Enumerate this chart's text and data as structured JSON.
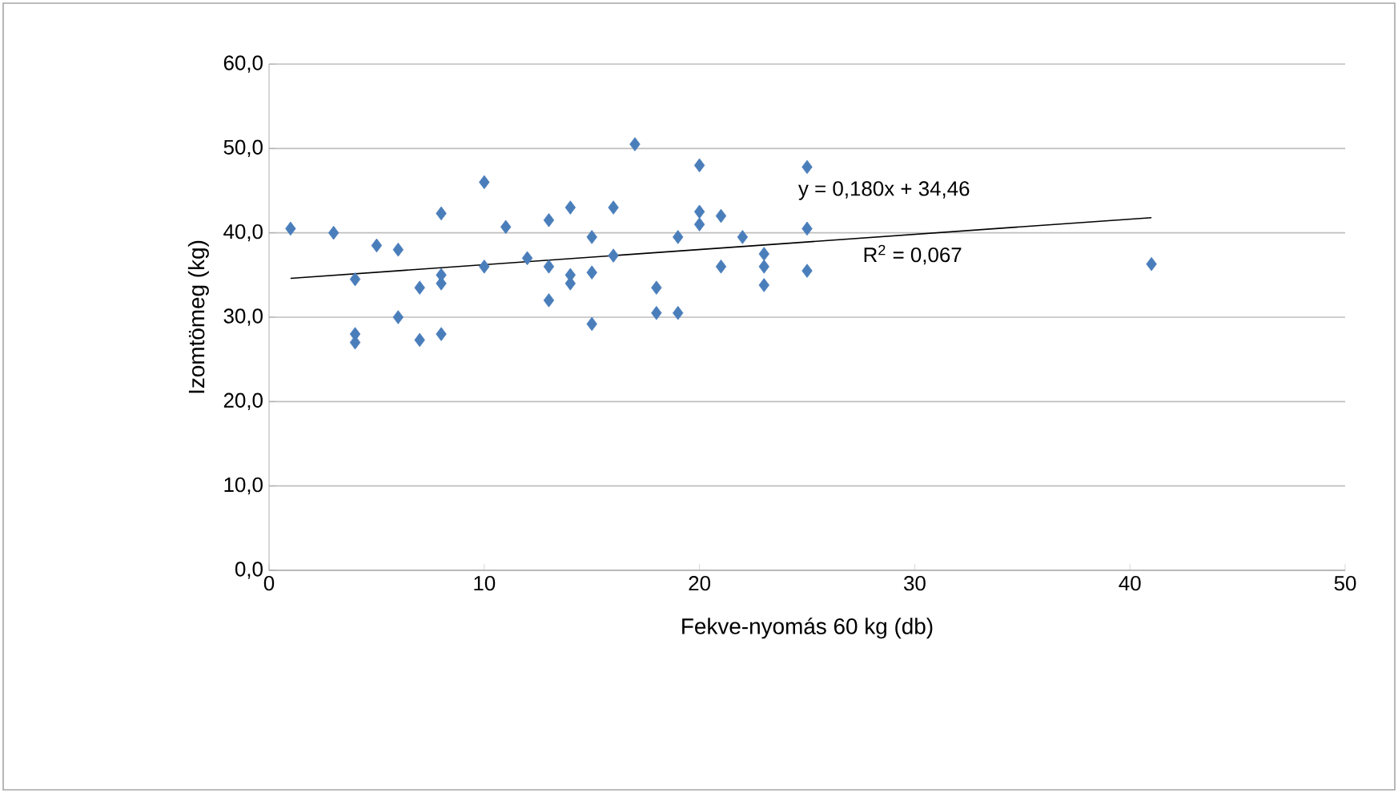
{
  "chart_data": {
    "type": "scatter",
    "xlabel": "Fekve-nyomás 60 kg (db)",
    "ylabel": "Izomtömeg (kg)",
    "xlim": [
      0,
      50
    ],
    "xticks": [
      0,
      10,
      20,
      30,
      40,
      50
    ],
    "ylim": [
      0,
      60
    ],
    "yticks": [
      {
        "value": 0,
        "label": "0,0"
      },
      {
        "value": 10,
        "label": "10,0"
      },
      {
        "value": 20,
        "label": "20,0"
      },
      {
        "value": 30,
        "label": "30,0"
      },
      {
        "value": 40,
        "label": "40,0"
      },
      {
        "value": 50,
        "label": "50,0"
      },
      {
        "value": 60,
        "label": "60,0"
      }
    ],
    "grid": "y",
    "marker": "diamond",
    "annotations": [
      "y = 0,180x + 34,46",
      "R$^{2}$ = 0,067"
    ],
    "series": [
      {
        "color": "#4a7ebb",
        "x": [
          1,
          3,
          4,
          4,
          4,
          5,
          6,
          6,
          7,
          7,
          8,
          8,
          8,
          8,
          10,
          10,
          11,
          12,
          13,
          13,
          13,
          14,
          14,
          14,
          15,
          15,
          15,
          16,
          16,
          17,
          18,
          18,
          19,
          19,
          20,
          20,
          20,
          21,
          21,
          22,
          23,
          23,
          23,
          25,
          25,
          25,
          41
        ],
        "values": [
          40.5,
          40,
          34.5,
          28,
          27,
          38.5,
          38,
          30,
          33.5,
          27.3,
          42.3,
          35,
          34,
          28,
          46,
          36,
          40.7,
          37,
          41.5,
          36,
          32,
          43,
          35,
          34,
          39.5,
          35.3,
          29.2,
          43,
          37.3,
          50.5,
          33.5,
          30.5,
          39.5,
          30.5,
          48,
          42.5,
          41,
          42,
          36,
          39.5,
          37.5,
          36,
          33.8,
          47.8,
          40.5,
          35.5,
          36.3
        ]
      },
      {
        "type": "line",
        "marker": "none",
        "color": "#000000",
        "x": [
          1,
          41
        ],
        "values": [
          34.6,
          41.8
        ]
      }
    ]
  }
}
